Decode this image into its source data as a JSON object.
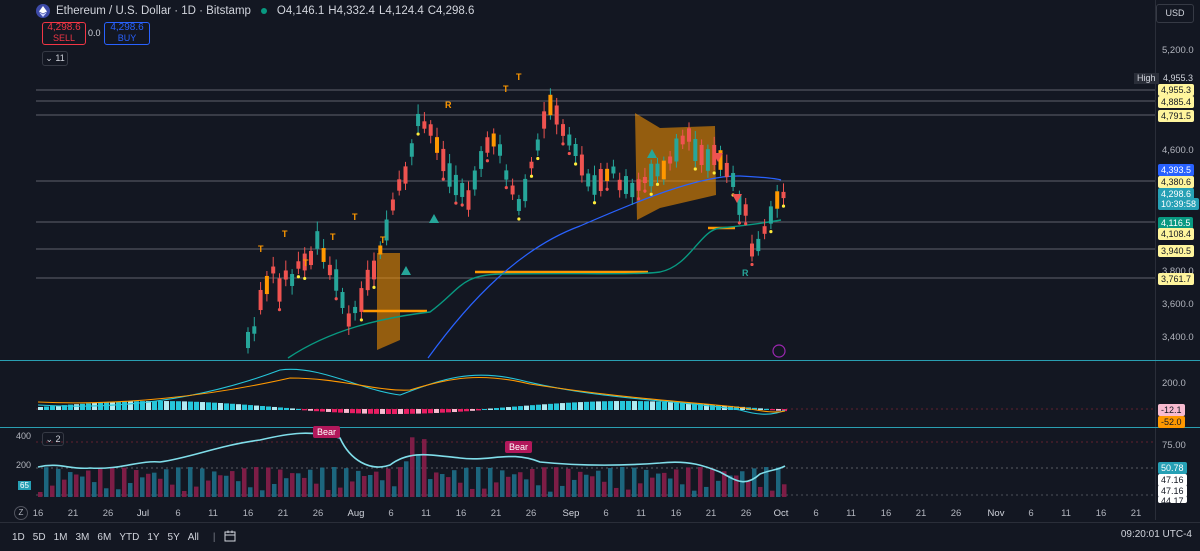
{
  "header": {
    "symbol": "Ethereum / U.S. Dollar · 1D · Bitstamp",
    "ohlc": [
      {
        "k": "O",
        "v": "4,146.1"
      },
      {
        "k": "H",
        "v": "4,332.4"
      },
      {
        "k": "L",
        "v": "4,124.4"
      },
      {
        "k": "C",
        "v": "4,298.6"
      }
    ],
    "sell_price": "4,298.6",
    "sell_label": "SELL",
    "spread": "0.0",
    "buy_price": "4,298.6",
    "buy_label": "BUY",
    "indicators_count": "11",
    "currency": "USD"
  },
  "price_axis": {
    "ticks": [
      "5,200.0",
      "4,600.0",
      "3,800.0",
      "3,600.0",
      "3,400.0"
    ],
    "high_label": "High",
    "tags": [
      {
        "text": "4,955.3",
        "bg": "#131722",
        "color": "#ffffff",
        "border": "#50535e"
      },
      {
        "text": "4,955.3",
        "bg": "#fff59d",
        "color": "#131722"
      },
      {
        "text": "4,885.4",
        "bg": "#fff59d",
        "color": "#131722"
      },
      {
        "text": "4,791.5",
        "bg": "#fff59d",
        "color": "#131722"
      },
      {
        "text": "4,393.5",
        "bg": "#2962ff",
        "color": "#ffffff"
      },
      {
        "text": "4,380.6",
        "bg": "#fff59d",
        "color": "#131722"
      },
      {
        "text": "4,298.6",
        "bg": "#26a0b5",
        "color": "#ffffff"
      },
      {
        "text": "10:39:58",
        "bg": "#26a0b5",
        "color": "#ffffff"
      },
      {
        "text": "4,116.5",
        "bg": "#089981",
        "color": "#ffffff"
      },
      {
        "text": "4,108.4",
        "bg": "#fff59d",
        "color": "#131722"
      },
      {
        "text": "3,940.5",
        "bg": "#fff59d",
        "color": "#131722"
      },
      {
        "text": "3,761.7",
        "bg": "#fff59d",
        "color": "#131722"
      }
    ]
  },
  "macd_pane": {
    "tick": "200.0",
    "tags": [
      {
        "text": "-12.1",
        "bg": "#f8bbd0",
        "color": "#131722"
      },
      {
        "text": "-52.0",
        "bg": "#ff9800",
        "color": "#131722"
      }
    ]
  },
  "osc_pane": {
    "indicators_count": "2",
    "ticks": [
      "75.00"
    ],
    "left_ticks": [
      "400",
      "200"
    ],
    "left_badge": "65",
    "bear_labels": [
      "Bear",
      "Bear"
    ],
    "tags": [
      {
        "text": "50.78",
        "bg": "#26a0b5",
        "color": "#ffffff"
      },
      {
        "text": "47.16",
        "bg": "#ffffff",
        "color": "#131722"
      },
      {
        "text": "47.16",
        "bg": "#ffffff",
        "color": "#131722"
      },
      {
        "text": "44.17",
        "bg": "#ffffff",
        "color": "#131722"
      }
    ]
  },
  "signal_labels": {
    "T": "T",
    "R": "R"
  },
  "time_axis": {
    "labels": [
      "16",
      "21",
      "26",
      "Jul",
      "6",
      "11",
      "16",
      "21",
      "26",
      "Aug",
      "6",
      "11",
      "16",
      "21",
      "26",
      "Sep",
      "6",
      "11",
      "16",
      "21",
      "26",
      "Oct",
      "6",
      "11",
      "16",
      "21",
      "26",
      "Nov",
      "6",
      "11",
      "16",
      "21"
    ]
  },
  "bottom_bar": {
    "timeframes": [
      "1D",
      "5D",
      "1M",
      "3M",
      "6M",
      "YTD",
      "1Y",
      "5Y",
      "All"
    ],
    "clock": "09:20:01 UTC-4"
  },
  "colors": {
    "bg": "#131722",
    "up": "#26a69a",
    "down": "#ef5350",
    "signal_orange": "#ff9800",
    "ema_green": "#089981",
    "ema_blue": "#2962ff"
  }
}
